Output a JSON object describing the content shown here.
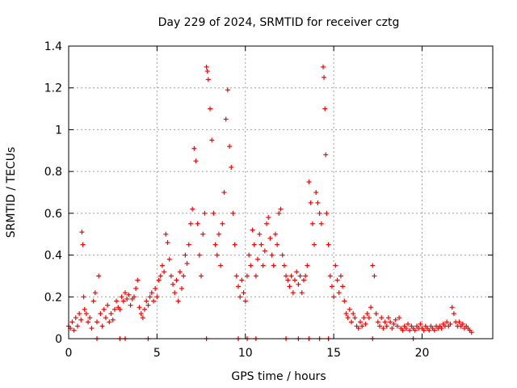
{
  "chart_data": {
    "type": "scatter",
    "title": "Day 229 of 2024, SRMTID for receiver cztg",
    "xlabel": "GPS time / hours",
    "ylabel": "SRMTID / TECUs",
    "xlim": [
      0,
      24
    ],
    "ylim": [
      0,
      1.4
    ],
    "xticks": [
      0,
      5,
      10,
      15,
      20
    ],
    "yticks": [
      0,
      0.2,
      0.4,
      0.6,
      0.8,
      1,
      1.2,
      1.4
    ],
    "xtick_labels": [
      "0",
      "5",
      "10",
      "15",
      "20"
    ],
    "ytick_labels": [
      "0",
      "0.2",
      "0.4",
      "0.6",
      "0.8",
      "1",
      "1.2",
      "1.4"
    ],
    "grid": true,
    "marker": "+",
    "marker_color": "#ff0000",
    "series": [
      {
        "name": "SRMTID",
        "points": [
          [
            0.0,
            0.06
          ],
          [
            0.1,
            0.05
          ],
          [
            0.2,
            0.08
          ],
          [
            0.3,
            0.04
          ],
          [
            0.4,
            0.1
          ],
          [
            0.5,
            0.06
          ],
          [
            0.6,
            0.12
          ],
          [
            0.7,
            0.09
          ],
          [
            0.75,
            0.51
          ],
          [
            0.8,
            0.45
          ],
          [
            0.85,
            0.2
          ],
          [
            0.9,
            0.14
          ],
          [
            1.0,
            0.12
          ],
          [
            1.1,
            0.08
          ],
          [
            1.2,
            0.1
          ],
          [
            1.3,
            0.05
          ],
          [
            1.4,
            0.18
          ],
          [
            1.5,
            0.22
          ],
          [
            1.6,
            0.08
          ],
          [
            1.7,
            0.3
          ],
          [
            1.8,
            0.12
          ],
          [
            1.9,
            0.06
          ],
          [
            2.0,
            0.14
          ],
          [
            2.1,
            0.1
          ],
          [
            2.2,
            0.16
          ],
          [
            2.3,
            0.08
          ],
          [
            2.4,
            0.12
          ],
          [
            2.5,
            0.09
          ],
          [
            2.6,
            0.14
          ],
          [
            2.7,
            0.18
          ],
          [
            2.8,
            0.15
          ],
          [
            2.9,
            0.14
          ],
          [
            3.0,
            0.2
          ],
          [
            3.1,
            0.18
          ],
          [
            3.2,
            0.22
          ],
          [
            3.3,
            0.19
          ],
          [
            3.4,
            0.21
          ],
          [
            3.5,
            0.16
          ],
          [
            3.6,
            0.19
          ],
          [
            3.7,
            0.2
          ],
          [
            3.8,
            0.24
          ],
          [
            3.9,
            0.28
          ],
          [
            4.0,
            0.15
          ],
          [
            4.1,
            0.12
          ],
          [
            4.2,
            0.1
          ],
          [
            4.3,
            0.14
          ],
          [
            4.4,
            0.18
          ],
          [
            4.5,
            0.16
          ],
          [
            4.6,
            0.2
          ],
          [
            4.7,
            0.22
          ],
          [
            4.8,
            0.18
          ],
          [
            4.9,
            0.24
          ],
          [
            5.0,
            0.2
          ],
          [
            5.1,
            0.28
          ],
          [
            5.2,
            0.3
          ],
          [
            5.3,
            0.35
          ],
          [
            5.4,
            0.32
          ],
          [
            5.5,
            0.5
          ],
          [
            5.6,
            0.46
          ],
          [
            5.7,
            0.38
          ],
          [
            5.8,
            0.3
          ],
          [
            5.9,
            0.26
          ],
          [
            6.0,
            0.22
          ],
          [
            6.1,
            0.28
          ],
          [
            6.2,
            0.18
          ],
          [
            6.3,
            0.32
          ],
          [
            6.4,
            0.24
          ],
          [
            6.5,
            0.3
          ],
          [
            6.6,
            0.4
          ],
          [
            6.7,
            0.36
          ],
          [
            6.8,
            0.45
          ],
          [
            6.9,
            0.55
          ],
          [
            7.0,
            0.62
          ],
          [
            7.1,
            0.91
          ],
          [
            7.2,
            0.85
          ],
          [
            7.3,
            0.55
          ],
          [
            7.4,
            0.4
          ],
          [
            7.5,
            0.3
          ],
          [
            7.6,
            0.5
          ],
          [
            7.7,
            0.6
          ],
          [
            7.8,
            1.3
          ],
          [
            7.85,
            1.28
          ],
          [
            7.9,
            1.24
          ],
          [
            8.0,
            1.1
          ],
          [
            8.1,
            0.95
          ],
          [
            8.2,
            0.6
          ],
          [
            8.3,
            0.45
          ],
          [
            8.4,
            0.4
          ],
          [
            8.5,
            0.5
          ],
          [
            8.6,
            0.35
          ],
          [
            8.7,
            0.55
          ],
          [
            8.8,
            0.7
          ],
          [
            8.9,
            1.05
          ],
          [
            9.0,
            1.19
          ],
          [
            9.1,
            0.92
          ],
          [
            9.2,
            0.82
          ],
          [
            9.3,
            0.6
          ],
          [
            9.4,
            0.45
          ],
          [
            9.5,
            0.3
          ],
          [
            9.6,
            0.25
          ],
          [
            9.7,
            0.2
          ],
          [
            9.8,
            0.28
          ],
          [
            9.9,
            0.22
          ],
          [
            10.0,
            0.18
          ],
          [
            10.1,
            0.3
          ],
          [
            10.2,
            0.4
          ],
          [
            10.3,
            0.35
          ],
          [
            10.4,
            0.52
          ],
          [
            10.5,
            0.45
          ],
          [
            10.6,
            0.3
          ],
          [
            10.7,
            0.38
          ],
          [
            10.8,
            0.5
          ],
          [
            10.9,
            0.45
          ],
          [
            11.0,
            0.35
          ],
          [
            11.1,
            0.42
          ],
          [
            11.2,
            0.55
          ],
          [
            11.3,
            0.58
          ],
          [
            11.4,
            0.48
          ],
          [
            11.5,
            0.4
          ],
          [
            11.6,
            0.35
          ],
          [
            11.7,
            0.5
          ],
          [
            11.8,
            0.45
          ],
          [
            11.9,
            0.6
          ],
          [
            12.0,
            0.62
          ],
          [
            12.1,
            0.4
          ],
          [
            12.2,
            0.35
          ],
          [
            12.3,
            0.3
          ],
          [
            12.4,
            0.28
          ],
          [
            12.5,
            0.25
          ],
          [
            12.6,
            0.3
          ],
          [
            12.7,
            0.22
          ],
          [
            12.8,
            0.28
          ],
          [
            12.9,
            0.32
          ],
          [
            13.0,
            0.26
          ],
          [
            13.1,
            0.3
          ],
          [
            13.2,
            0.22
          ],
          [
            13.3,
            0.28
          ],
          [
            13.4,
            0.3
          ],
          [
            13.5,
            0.35
          ],
          [
            13.6,
            0.75
          ],
          [
            13.7,
            0.65
          ],
          [
            13.8,
            0.55
          ],
          [
            13.9,
            0.45
          ],
          [
            14.0,
            0.7
          ],
          [
            14.1,
            0.65
          ],
          [
            14.2,
            0.6
          ],
          [
            14.3,
            0.55
          ],
          [
            14.4,
            1.3
          ],
          [
            14.45,
            1.25
          ],
          [
            14.5,
            1.1
          ],
          [
            14.55,
            0.88
          ],
          [
            14.6,
            0.6
          ],
          [
            14.7,
            0.45
          ],
          [
            14.8,
            0.3
          ],
          [
            14.9,
            0.25
          ],
          [
            15.0,
            0.2
          ],
          [
            15.1,
            0.35
          ],
          [
            15.2,
            0.28
          ],
          [
            15.3,
            0.22
          ],
          [
            15.4,
            0.3
          ],
          [
            15.5,
            0.25
          ],
          [
            15.6,
            0.18
          ],
          [
            15.7,
            0.12
          ],
          [
            15.8,
            0.1
          ],
          [
            15.9,
            0.14
          ],
          [
            16.0,
            0.08
          ],
          [
            16.1,
            0.12
          ],
          [
            16.2,
            0.1
          ],
          [
            16.3,
            0.06
          ],
          [
            16.4,
            0.05
          ],
          [
            16.5,
            0.08
          ],
          [
            16.6,
            0.06
          ],
          [
            16.7,
            0.1
          ],
          [
            16.8,
            0.07
          ],
          [
            16.9,
            0.12
          ],
          [
            17.0,
            0.1
          ],
          [
            17.1,
            0.15
          ],
          [
            17.2,
            0.35
          ],
          [
            17.3,
            0.3
          ],
          [
            17.4,
            0.12
          ],
          [
            17.5,
            0.08
          ],
          [
            17.6,
            0.06
          ],
          [
            17.7,
            0.1
          ],
          [
            17.8,
            0.05
          ],
          [
            17.9,
            0.08
          ],
          [
            18.0,
            0.06
          ],
          [
            18.1,
            0.1
          ],
          [
            18.2,
            0.08
          ],
          [
            18.3,
            0.05
          ],
          [
            18.4,
            0.07
          ],
          [
            18.5,
            0.09
          ],
          [
            18.6,
            0.06
          ],
          [
            18.7,
            0.1
          ],
          [
            18.8,
            0.05
          ],
          [
            18.9,
            0.04
          ],
          [
            19.0,
            0.06
          ],
          [
            19.1,
            0.05
          ],
          [
            19.2,
            0.07
          ],
          [
            19.3,
            0.04
          ],
          [
            19.4,
            0.06
          ],
          [
            19.5,
            0.05
          ],
          [
            19.6,
            0.04
          ],
          [
            19.7,
            0.06
          ],
          [
            19.8,
            0.05
          ],
          [
            19.9,
            0.07
          ],
          [
            20.0,
            0.05
          ],
          [
            20.1,
            0.04
          ],
          [
            20.2,
            0.06
          ],
          [
            20.3,
            0.05
          ],
          [
            20.4,
            0.04
          ],
          [
            20.5,
            0.06
          ],
          [
            20.6,
            0.05
          ],
          [
            20.7,
            0.04
          ],
          [
            20.8,
            0.06
          ],
          [
            20.9,
            0.05
          ],
          [
            21.0,
            0.06
          ],
          [
            21.1,
            0.05
          ],
          [
            21.2,
            0.07
          ],
          [
            21.3,
            0.06
          ],
          [
            21.4,
            0.08
          ],
          [
            21.5,
            0.06
          ],
          [
            21.6,
            0.07
          ],
          [
            21.7,
            0.15
          ],
          [
            21.8,
            0.12
          ],
          [
            21.9,
            0.08
          ],
          [
            22.0,
            0.06
          ],
          [
            22.1,
            0.08
          ],
          [
            22.2,
            0.06
          ],
          [
            22.3,
            0.07
          ],
          [
            22.4,
            0.05
          ],
          [
            22.5,
            0.06
          ],
          [
            22.6,
            0.05
          ],
          [
            22.7,
            0.04
          ],
          [
            22.8,
            0.03
          ],
          [
            1.6,
            0.0
          ],
          [
            2.9,
            0.0
          ],
          [
            3.2,
            0.0
          ],
          [
            4.5,
            0.0
          ],
          [
            7.8,
            0.0
          ],
          [
            9.6,
            0.0
          ],
          [
            10.1,
            0.0
          ],
          [
            10.6,
            0.0
          ],
          [
            12.3,
            0.0
          ],
          [
            13.0,
            0.0
          ],
          [
            13.6,
            0.0
          ],
          [
            14.2,
            0.0
          ],
          [
            14.7,
            0.0
          ],
          [
            17.2,
            0.0
          ],
          [
            19.5,
            0.0
          ]
        ]
      }
    ]
  }
}
